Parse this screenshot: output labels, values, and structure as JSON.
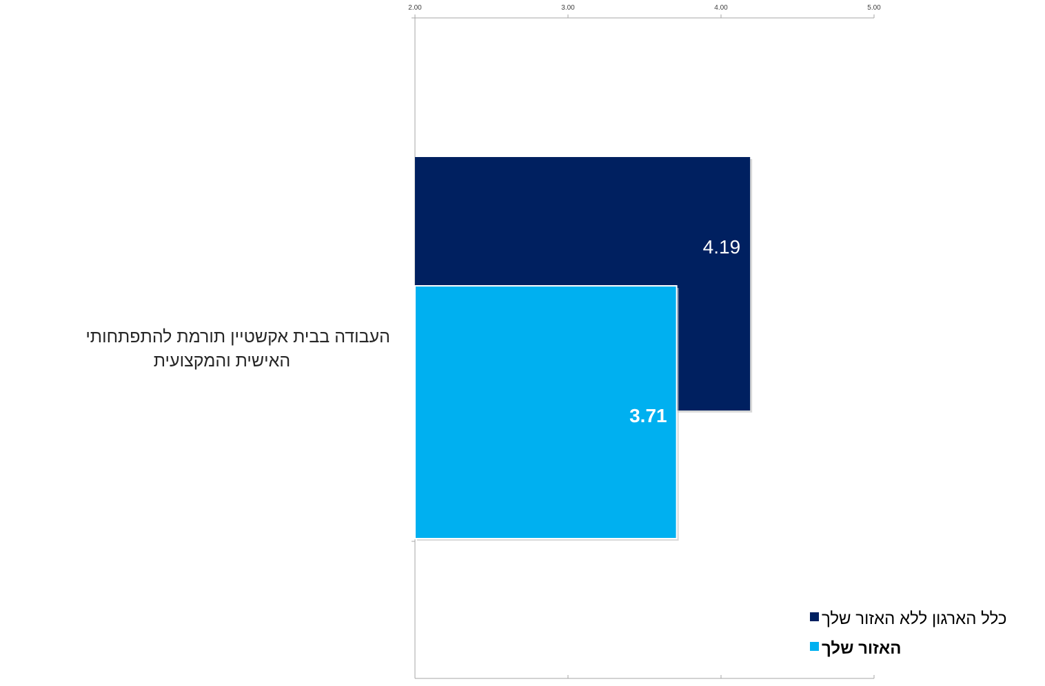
{
  "chart_data": {
    "type": "bar",
    "orientation": "horizontal",
    "categories": [
      "העבודה בבית אקשטיין  תורמת  להתפתחותי האישית והמקצועית"
    ],
    "category_label_lines": [
      "העבודה בבית אקשטיין  תורמת  להתפתחותי",
      "האישית והמקצועית"
    ],
    "series": [
      {
        "name": "כלל הארגון ללא האזור שלך",
        "values": [
          4.19
        ],
        "labels": [
          "4.19"
        ],
        "color": "#002060"
      },
      {
        "name": "האזור שלך",
        "values": [
          3.71
        ],
        "labels": [
          "3.71"
        ],
        "color": "#00B0F0"
      }
    ],
    "xlim": [
      2,
      5
    ],
    "x_ticks": [
      "2.00",
      "3.00",
      "4.00",
      "5.00"
    ],
    "x_tick_values": [
      2,
      3,
      4,
      5
    ],
    "title": "",
    "xlabel": "",
    "ylabel": "",
    "grid": false,
    "axis_position": "top",
    "legend_position": "bottom-right"
  }
}
